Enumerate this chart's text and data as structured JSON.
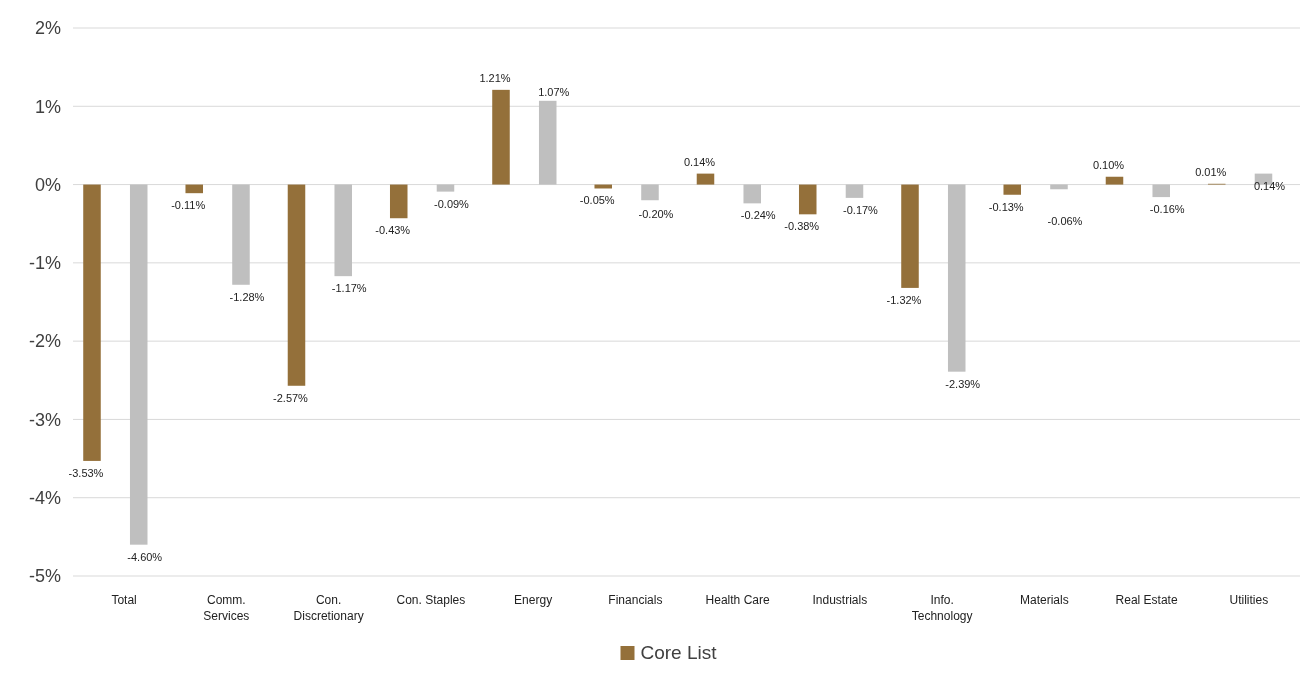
{
  "chart_data": {
    "type": "bar",
    "categories": [
      "Total",
      "Comm. Services",
      "Con. Discretionary",
      "Con. Staples",
      "Energy",
      "Financials",
      "Health Care",
      "Industrials",
      "Info. Technology",
      "Materials",
      "Real Estate",
      "Utilities"
    ],
    "series": [
      {
        "name": "Core List",
        "color": "#94703a",
        "values": [
          -3.53,
          -0.11,
          -2.57,
          -0.43,
          1.21,
          -0.05,
          0.14,
          -0.38,
          -1.32,
          -0.13,
          0.1,
          0.01
        ],
        "value_labels": [
          "-3.53%",
          "-0.11%",
          "-2.57%",
          "-0.43%",
          "1.21%",
          "-0.05%",
          "0.14%",
          "-0.38%",
          "-1.32%",
          "-0.13%",
          "0.10%",
          "0.01%"
        ]
      },
      {
        "color": "#bfbfbf",
        "values": [
          -4.6,
          -1.28,
          -1.17,
          -0.09,
          1.07,
          -0.2,
          -0.24,
          -0.17,
          -2.39,
          -0.06,
          -0.16,
          0.14
        ],
        "value_labels": [
          "-4.60%",
          "-1.28%",
          "-1.17%",
          "-0.09%",
          "1.07%",
          "-0.20%",
          "-0.24%",
          "-0.17%",
          "-2.39%",
          "-0.06%",
          "-0.16%",
          "0.14%"
        ]
      }
    ],
    "ylim": [
      -5,
      2
    ],
    "yticks": [
      {
        "value": -5,
        "label": "-5%"
      },
      {
        "value": -4,
        "label": "-4%"
      },
      {
        "value": -3,
        "label": "-3%"
      },
      {
        "value": -2,
        "label": "-2%"
      },
      {
        "value": -1,
        "label": "-1%"
      },
      {
        "value": 0,
        "label": "0%"
      },
      {
        "value": 1,
        "label": "1%"
      },
      {
        "value": 2,
        "label": "2%"
      }
    ],
    "grid": "y",
    "legend": "bottom"
  }
}
